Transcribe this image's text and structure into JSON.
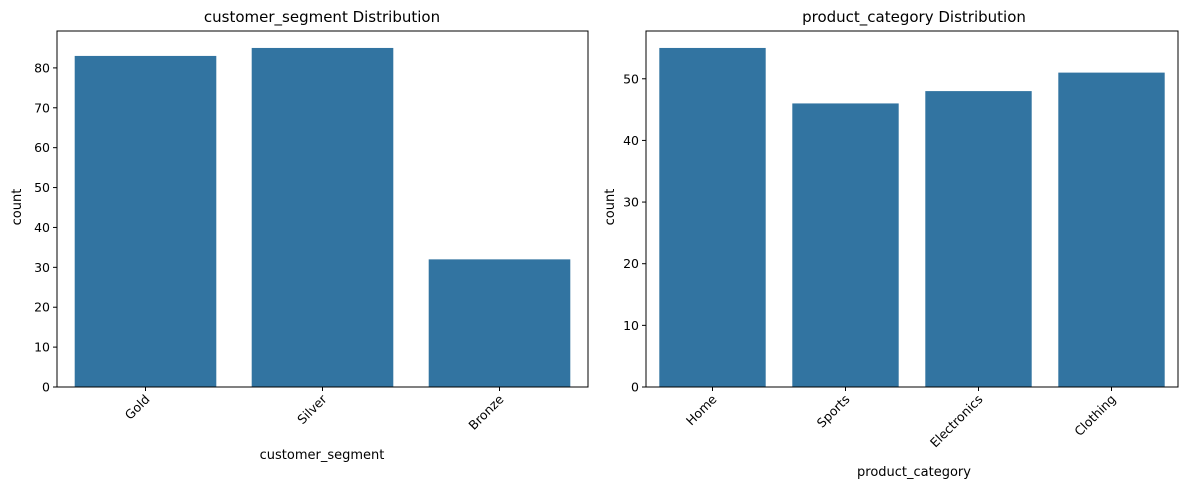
{
  "colors": {
    "bar": "#3274a1",
    "axis": "#000000",
    "background": "#ffffff"
  },
  "chart_data": [
    {
      "type": "bar",
      "title": "customer_segment Distribution",
      "xlabel": "customer_segment",
      "ylabel": "count",
      "categories": [
        "Gold",
        "Silver",
        "Bronze"
      ],
      "values": [
        83,
        85,
        32
      ],
      "ylim": [
        0,
        89.25
      ],
      "yticks": [
        "0",
        "10",
        "20",
        "30",
        "40",
        "50",
        "60",
        "70",
        "80"
      ],
      "grid": false,
      "xtick_rotation": 45
    },
    {
      "type": "bar",
      "title": "product_category Distribution",
      "xlabel": "product_category",
      "ylabel": "count",
      "categories": [
        "Home",
        "Sports",
        "Electronics",
        "Clothing"
      ],
      "values": [
        55,
        46,
        48,
        51
      ],
      "ylim": [
        0,
        57.75
      ],
      "yticks": [
        "0",
        "10",
        "20",
        "30",
        "40",
        "50"
      ],
      "grid": false,
      "xtick_rotation": 45
    }
  ]
}
